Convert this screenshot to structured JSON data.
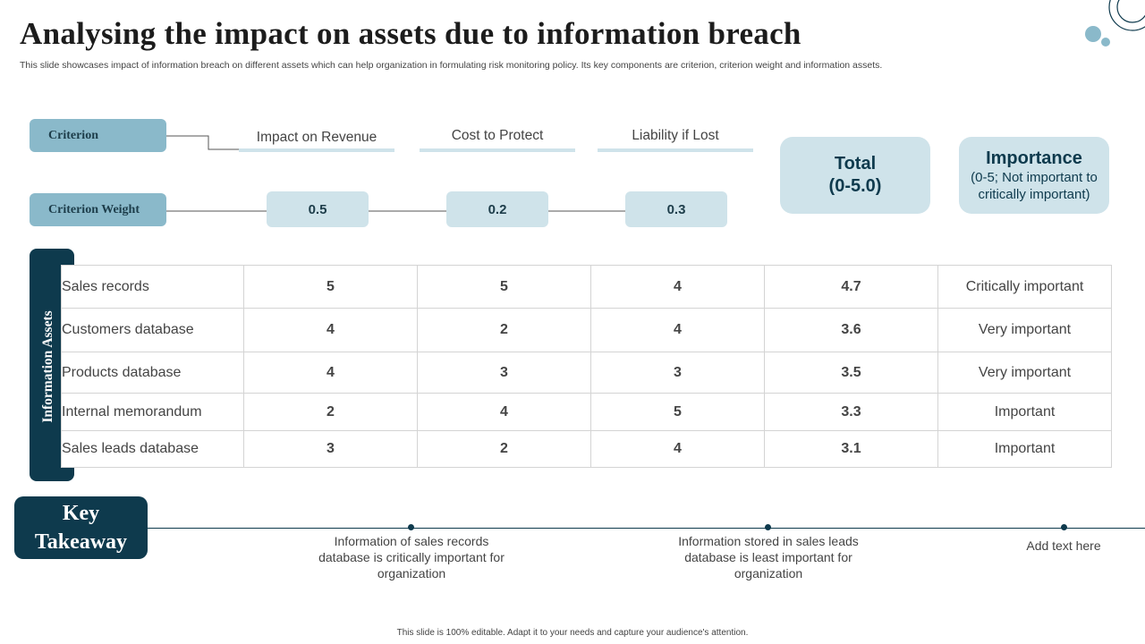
{
  "header": {
    "title": "Analysing the impact on assets due to information breach",
    "subtitle": "This slide showcases impact of information breach on different assets which can help organization in formulating risk monitoring policy. Its key components are criterion, criterion weight and information assets."
  },
  "criteria": {
    "criterion_label": "Criterion",
    "weight_label": "Criterion  Weight",
    "columns": [
      "Impact on Revenue",
      "Cost to Protect",
      "Liability if Lost"
    ],
    "weights": [
      "0.5",
      "0.2",
      "0.3"
    ],
    "total": {
      "line1": "Total",
      "line2": "(0-5.0)"
    },
    "importance": {
      "title": "Importance",
      "subtitle": "(0-5; Not important to critically important)"
    }
  },
  "assets": {
    "side_label": "Information Assets",
    "rows": [
      {
        "name": "Sales records",
        "revenue": "5",
        "cost": "5",
        "liability": "4",
        "total": "4.7",
        "importance": "Critically important"
      },
      {
        "name": "Customers database",
        "revenue": "4",
        "cost": "2",
        "liability": "4",
        "total": "3.6",
        "importance": "Very important"
      },
      {
        "name": "Products database",
        "revenue": "4",
        "cost": "3",
        "liability": "3",
        "total": "3.5",
        "importance": "Very important"
      },
      {
        "name": "Internal  memorandum",
        "revenue": "2",
        "cost": "4",
        "liability": "5",
        "total": "3.3",
        "importance": "Important"
      },
      {
        "name": "Sales leads database",
        "revenue": "3",
        "cost": "2",
        "liability": "4",
        "total": "3.1",
        "importance": "Important"
      }
    ]
  },
  "key_takeaway": {
    "line1": "Key",
    "line2": "Takeaway",
    "items": [
      "Information of sales records database is critically important for organization",
      "Information stored in sales leads database is least important for organization",
      "Add text here"
    ]
  },
  "footer": "This slide is 100% editable.  Adapt it to your needs and capture your audience's attention.",
  "colors": {
    "dark_teal": "#0e3a4d",
    "mid_blue": "#8ab9ca",
    "light_blue": "#cfe3ea"
  }
}
